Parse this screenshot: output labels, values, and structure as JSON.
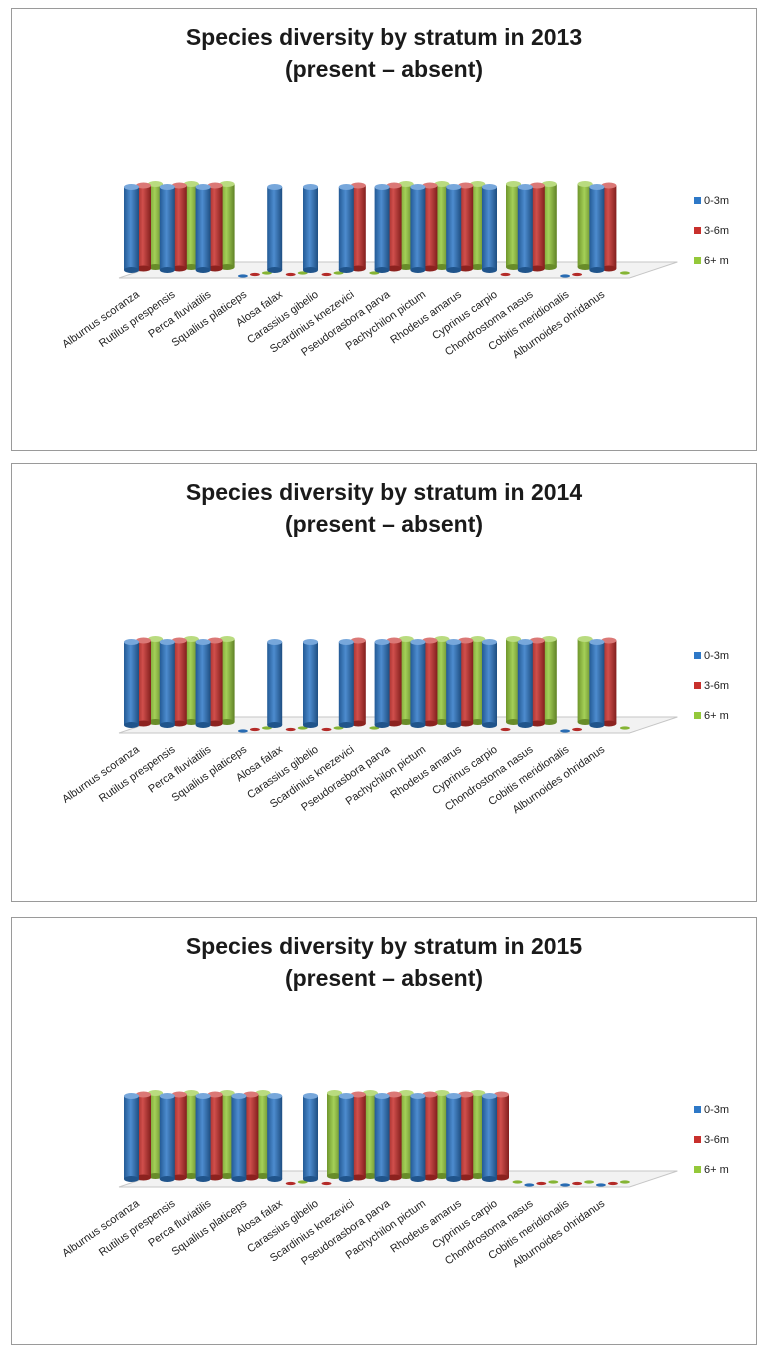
{
  "legend": [
    {
      "label": "0-3m",
      "color": "#2e78c7"
    },
    {
      "label": "3-6m",
      "color": "#c8302c"
    },
    {
      "label": "6+ m",
      "color": "#94c83a"
    }
  ],
  "chart_data": [
    {
      "type": "bar",
      "title": "Species diversity by stratum in 2013",
      "subtitle": "(present – absent)",
      "categories": [
        "Alburnus scoranza",
        "Rutilus prespensis",
        "Perca fluviatilis",
        "Squalius platiceps",
        "Alosa falax",
        "Carassius gibelio",
        "Scardinius knezevici",
        "Pseudorasbora parva",
        "Pachychilon pictum",
        "Rhodeus amarus",
        "Cyprinus carpio",
        "Chondrostoma nasus",
        "Cobitis meridionalis",
        "Alburnoides ohridanus"
      ],
      "series": [
        {
          "name": "0-3m",
          "values": [
            1,
            1,
            1,
            0,
            1,
            1,
            1,
            1,
            1,
            1,
            1,
            1,
            0,
            1
          ]
        },
        {
          "name": "3-6m",
          "values": [
            1,
            1,
            1,
            0,
            0,
            0,
            1,
            1,
            1,
            1,
            0,
            1,
            0,
            1
          ]
        },
        {
          "name": "6+ m",
          "values": [
            1,
            1,
            1,
            0,
            0,
            0,
            0,
            1,
            1,
            1,
            1,
            1,
            1,
            0
          ]
        }
      ],
      "ylim": [
        0,
        1
      ],
      "grid": false,
      "legend_position": "right"
    },
    {
      "type": "bar",
      "title": "Species diversity by stratum in 2014",
      "subtitle": "(present – absent)",
      "categories": [
        "Alburnus scoranza",
        "Rutilus prespensis",
        "Perca fluviatilis",
        "Squalius platiceps",
        "Alosa falax",
        "Carassius gibelio",
        "Scardinius knezevici",
        "Pseudorasbora parva",
        "Pachychilon pictum",
        "Rhodeus amarus",
        "Cyprinus carpio",
        "Chondrostoma nasus",
        "Cobitis meridionalis",
        "Alburnoides ohridanus"
      ],
      "series": [
        {
          "name": "0-3m",
          "values": [
            1,
            1,
            1,
            0,
            1,
            1,
            1,
            1,
            1,
            1,
            1,
            1,
            0,
            1
          ]
        },
        {
          "name": "3-6m",
          "values": [
            1,
            1,
            1,
            0,
            0,
            0,
            1,
            1,
            1,
            1,
            0,
            1,
            0,
            1
          ]
        },
        {
          "name": "6+ m",
          "values": [
            1,
            1,
            1,
            0,
            0,
            0,
            0,
            1,
            1,
            1,
            1,
            1,
            1,
            0
          ]
        }
      ],
      "ylim": [
        0,
        1
      ],
      "grid": false,
      "legend_position": "right"
    },
    {
      "type": "bar",
      "title": "Species diversity by stratum in 2015",
      "subtitle": "(present – absent)",
      "categories": [
        "Alburnus scoranza",
        "Rutilus prespensis",
        "Perca fluviatilis",
        "Squalius platiceps",
        "Alosa falax",
        "Carassius gibelio",
        "Scardinius knezevici",
        "Pseudorasbora parva",
        "Pachychilon pictum",
        "Rhodeus amarus",
        "Cyprinus carpio",
        "Chondrostoma nasus",
        "Cobitis meridionalis",
        "Alburnoides ohridanus"
      ],
      "series": [
        {
          "name": "0-3m",
          "values": [
            1,
            1,
            1,
            1,
            1,
            1,
            1,
            1,
            1,
            1,
            1,
            0,
            0,
            0
          ]
        },
        {
          "name": "3-6m",
          "values": [
            1,
            1,
            1,
            1,
            0,
            0,
            1,
            1,
            1,
            1,
            1,
            0,
            0,
            0
          ]
        },
        {
          "name": "6+ m",
          "values": [
            1,
            1,
            1,
            1,
            0,
            1,
            1,
            1,
            1,
            1,
            0,
            0,
            0,
            0
          ]
        }
      ],
      "ylim": [
        0,
        1
      ],
      "grid": false,
      "legend_position": "right"
    }
  ]
}
